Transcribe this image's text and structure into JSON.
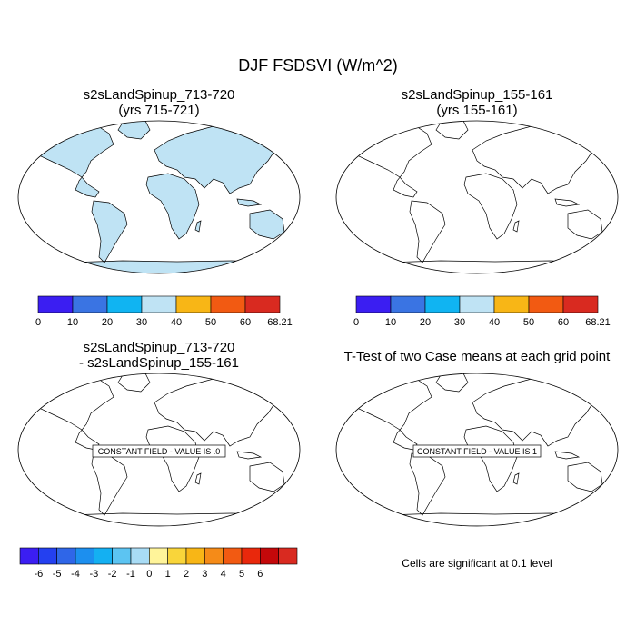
{
  "title": "DJF FSDSVI (W/m^2)",
  "panels": [
    {
      "id": "top-left",
      "title_line1": "s2sLandSpinup_713-720",
      "title_line2": "(yrs 715-721)"
    },
    {
      "id": "top-right",
      "title_line1": "s2sLandSpinup_155-161",
      "title_line2": "(yrs 155-161)"
    },
    {
      "id": "bottom-left",
      "title_line1": "s2sLandSpinup_713-720",
      "title_line2": "- s2sLandSpinup_155-161",
      "constant_label": "CONSTANT FIELD - VALUE IS .0"
    },
    {
      "id": "bottom-right",
      "title": "T-Test of two Case means at each grid point",
      "constant_label": "CONSTANT FIELD - VALUE IS 1"
    }
  ],
  "colorbar_main": {
    "labels": [
      "0",
      "10",
      "20",
      "30",
      "40",
      "50",
      "60",
      "68.21"
    ],
    "colors": [
      "#3b1ef2",
      "#3a74e3",
      "#10b4f2",
      "#bfe3f4",
      "#f8b616",
      "#f25a12",
      "#d92a20"
    ]
  },
  "colorbar_diff": {
    "labels": [
      "-6",
      "-5",
      "-4",
      "-3",
      "-2",
      "-1",
      "0",
      "1",
      "2",
      "3",
      "4",
      "5",
      "6"
    ],
    "colors": [
      "#3b1ef2",
      "#2440f0",
      "#2f66e8",
      "#1c8fef",
      "#14b0f2",
      "#5cc4f2",
      "#a9dcf5",
      "#fff49a",
      "#f9d53a",
      "#f8b616",
      "#f58b18",
      "#f25a12",
      "#e9280c",
      "#c4080a",
      "#d92a20"
    ]
  },
  "significance_note": "Cells are significant at 0.1 level",
  "chart_data": {
    "type": "heatmap",
    "title": "DJF FSDSVI (W/m^2)",
    "contour_levels": [
      0,
      10,
      20,
      30,
      40,
      50,
      60,
      68.21
    ],
    "difference_levels": [
      -6,
      -5,
      -4,
      -3,
      -2,
      -1,
      0,
      1,
      2,
      3,
      4,
      5,
      6
    ],
    "difference_field": 0,
    "ttest_field": 1
  }
}
